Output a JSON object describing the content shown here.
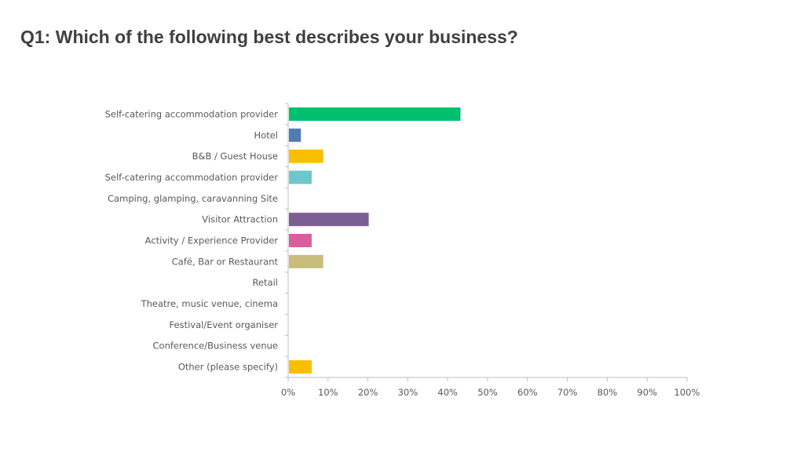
{
  "slide": {
    "title": "Q1: Which of the following best describes your business?"
  },
  "chart_data": {
    "type": "bar",
    "orientation": "horizontal",
    "title": "",
    "xlabel": "",
    "ylabel": "",
    "categories": [
      "Self-catering accommodation provider",
      "Hotel",
      "B&B / Guest House",
      "Self-catering accommodation provider",
      "Camping, glamping, caravanning Site",
      "Visitor Attraction",
      "Activity / Experience Provider",
      "Café, Bar or Restaurant",
      "Retail",
      "Theatre, music venue, cinema",
      "Festival/Event organiser",
      "Conference/Business venue",
      "Other (please specify)"
    ],
    "values": [
      43,
      3,
      8.6,
      5.7,
      0,
      20,
      5.7,
      8.6,
      0,
      0,
      0,
      0,
      5.7
    ],
    "colors": [
      "#00BF6F",
      "#507CB6",
      "#F9BE00",
      "#6BC8CD",
      "#507CB6",
      "#7D5E92",
      "#DB5D9A",
      "#C8BD7A",
      "#507CB6",
      "#507CB6",
      "#507CB6",
      "#507CB6",
      "#F9BE00"
    ],
    "xlim": [
      0,
      100
    ],
    "xticks": [
      "0%",
      "10%",
      "20%",
      "30%",
      "40%",
      "50%",
      "60%",
      "70%",
      "80%",
      "90%",
      "100%"
    ],
    "grid": false,
    "legend": "none"
  }
}
